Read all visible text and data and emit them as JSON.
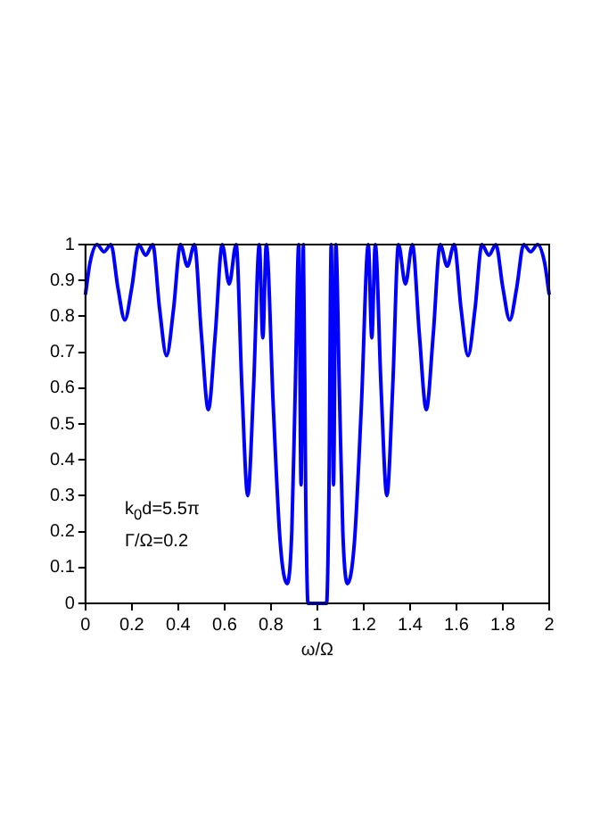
{
  "chart_data": {
    "type": "line",
    "xlabel": "ω/Ω",
    "annotations": [
      "k$_{0}$d=5.5π",
      "Γ/Ω=0.2"
    ],
    "series": [
      {
        "color": "#0000ff",
        "x": [
          0,
          0.02,
          0.05,
          0.08,
          0.11,
          0.14,
          0.17,
          0.2,
          0.23,
          0.26,
          0.29,
          0.32,
          0.35,
          0.38,
          0.41,
          0.44,
          0.47,
          0.5,
          0.53,
          0.56,
          0.59,
          0.62,
          0.65,
          0.675,
          0.7,
          0.725,
          0.75,
          0.765,
          0.78,
          0.81,
          0.84,
          0.87,
          0.89,
          0.905,
          0.92,
          0.93,
          0.94,
          0.95,
          0.96,
          1.0,
          1.04,
          1.05,
          1.06,
          1.07,
          1.08,
          1.095,
          1.11,
          1.13,
          1.16,
          1.19,
          1.22,
          1.235,
          1.25,
          1.275,
          1.3,
          1.325,
          1.35,
          1.38,
          1.41,
          1.44,
          1.47,
          1.5,
          1.53,
          1.56,
          1.59,
          1.62,
          1.65,
          1.68,
          1.71,
          1.74,
          1.77,
          1.8,
          1.83,
          1.86,
          1.89,
          1.92,
          1.95,
          1.98,
          2
        ],
        "values": [
          0.86,
          0.95,
          1,
          0.98,
          1,
          0.88,
          0.79,
          0.88,
          1,
          0.97,
          1,
          0.82,
          0.69,
          0.82,
          1,
          0.94,
          1,
          0.75,
          0.54,
          0.75,
          1,
          0.89,
          1,
          0.6,
          0.3,
          0.6,
          1,
          0.74,
          1,
          0.55,
          0.17,
          0.055,
          0.2,
          0.6,
          1,
          0.33,
          1,
          0.3,
          0,
          0,
          0,
          0.3,
          1,
          0.33,
          1,
          0.6,
          0.2,
          0.055,
          0.17,
          0.55,
          1,
          0.74,
          1,
          0.6,
          0.3,
          0.6,
          1,
          0.89,
          1,
          0.75,
          0.54,
          0.75,
          1,
          0.94,
          1,
          0.82,
          0.69,
          0.82,
          1,
          0.97,
          1,
          0.88,
          0.79,
          0.88,
          1,
          0.98,
          1,
          0.95,
          0.86
        ]
      }
    ],
    "xlim": [
      0,
      2
    ],
    "xticks": [
      0,
      0.2,
      0.4,
      0.6,
      0.8,
      1,
      1.2,
      1.4,
      1.6,
      1.8,
      2
    ],
    "ylim": [
      0,
      1
    ],
    "yticks": [
      0,
      0.1,
      0.2,
      0.3,
      0.4,
      0.5,
      0.6,
      0.7,
      0.8,
      0.9,
      1
    ],
    "grid": false,
    "legend": false,
    "marker": "none",
    "line_style": "solid"
  }
}
